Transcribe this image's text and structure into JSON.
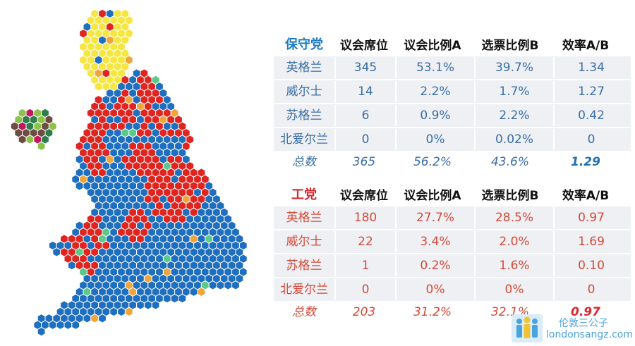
{
  "chart_data": {
    "type": "table",
    "tables": [
      {
        "party": "保守党",
        "columns": [
          "议会席位",
          "议会比例A",
          "选票比例B",
          "效率A/B"
        ],
        "rows": [
          {
            "region": "英格兰",
            "seats": "345",
            "seat_share": "53.1%",
            "vote_share": "39.7%",
            "efficiency": "1.34"
          },
          {
            "region": "威尔士",
            "seats": "14",
            "seat_share": "2.2%",
            "vote_share": "1.7%",
            "efficiency": "1.27"
          },
          {
            "region": "苏格兰",
            "seats": "6",
            "seat_share": "0.9%",
            "vote_share": "2.2%",
            "efficiency": "0.42"
          },
          {
            "region": "北爱尔兰",
            "seats": "0",
            "seat_share": "0%",
            "vote_share": "0.02%",
            "efficiency": "0"
          }
        ],
        "total": {
          "label": "总数",
          "seats": "365",
          "seat_share": "56.2%",
          "vote_share": "43.6%",
          "efficiency": "1.29"
        },
        "color": "#1f7bc0"
      },
      {
        "party": "工党",
        "columns": [
          "议会席位",
          "议会比例A",
          "选票比例B",
          "效率A/B"
        ],
        "rows": [
          {
            "region": "英格兰",
            "seats": "180",
            "seat_share": "27.7%",
            "vote_share": "28.5%",
            "efficiency": "0.97"
          },
          {
            "region": "威尔士",
            "seats": "22",
            "seat_share": "3.4%",
            "vote_share": "2.0%",
            "efficiency": "1.69"
          },
          {
            "region": "苏格兰",
            "seats": "1",
            "seat_share": "0.2%",
            "vote_share": "1.6%",
            "efficiency": "0.10"
          },
          {
            "region": "北爱尔兰",
            "seats": "0",
            "seat_share": "0%",
            "vote_share": "0%",
            "efficiency": "0"
          }
        ],
        "total": {
          "label": "总数",
          "seats": "203",
          "seat_share": "31.2%",
          "vote_share": "32.1%",
          "efficiency": "0.97"
        },
        "color": "#d8262e"
      }
    ],
    "map": {
      "type": "hex-cartogram",
      "colors": {
        "conservative": "#1f6fc0",
        "labour": "#e0241f",
        "snp": "#f5e642",
        "libdem": "#f0a53a",
        "green": "#5ac98a",
        "northern_ireland": [
          "#2e7d4a",
          "#c2185b",
          "#8bc34a",
          "#6d4c41"
        ]
      }
    }
  },
  "watermark": {
    "cn": "伦敦三公子",
    "en": "londonsangz.com"
  }
}
